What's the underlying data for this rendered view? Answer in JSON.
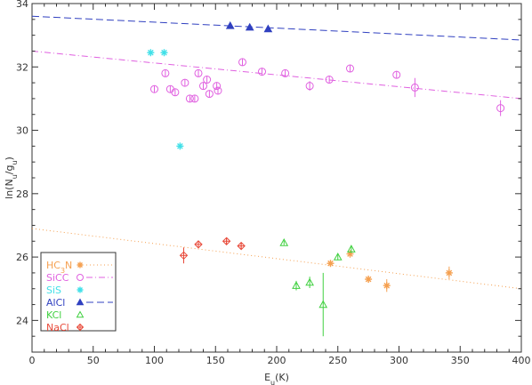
{
  "chart_data": {
    "type": "scatter",
    "xlabel": "E_u(K)",
    "ylabel": "ln(N_u/g_u)",
    "xlim": [
      0,
      400
    ],
    "ylim": [
      23,
      34
    ],
    "xticks": [
      0,
      50,
      100,
      150,
      200,
      250,
      300,
      350,
      400
    ],
    "yticks": [
      24,
      26,
      28,
      30,
      32,
      34
    ],
    "grid": false,
    "legend_position": "bottom-left",
    "series": [
      {
        "name": "HC3N",
        "legend_main": "HC",
        "legend_sub": "3",
        "legend_end": "N",
        "color": "#f5a050",
        "marker": "star",
        "fit_style": "dotted",
        "fit": {
          "x": [
            0,
            400
          ],
          "y": [
            26.9,
            25.0
          ]
        },
        "points": [
          {
            "x": 244,
            "y": 25.8,
            "err": 0.05
          },
          {
            "x": 260,
            "y": 26.1,
            "err": 0.12
          },
          {
            "x": 275,
            "y": 25.3,
            "err": 0.1
          },
          {
            "x": 290,
            "y": 25.1,
            "err": 0.2
          },
          {
            "x": 341,
            "y": 25.5,
            "err": 0.2
          }
        ]
      },
      {
        "name": "SiCC",
        "color": "#e060e0",
        "marker": "circle",
        "fit_style": "dashdot",
        "fit": {
          "x": [
            0,
            400
          ],
          "y": [
            32.5,
            31.0
          ]
        },
        "points": [
          {
            "x": 100,
            "y": 31.3,
            "err": 0.1
          },
          {
            "x": 109,
            "y": 31.8,
            "err": 0.1
          },
          {
            "x": 113,
            "y": 31.3,
            "err": 0.1
          },
          {
            "x": 117,
            "y": 31.2,
            "err": 0.1
          },
          {
            "x": 125,
            "y": 31.5,
            "err": 0.1
          },
          {
            "x": 129,
            "y": 31.0,
            "err": 0.1
          },
          {
            "x": 133,
            "y": 31.0,
            "err": 0.1
          },
          {
            "x": 136,
            "y": 31.8,
            "err": 0.1
          },
          {
            "x": 140,
            "y": 31.4,
            "err": 0.1
          },
          {
            "x": 143,
            "y": 31.6,
            "err": 0.1
          },
          {
            "x": 145,
            "y": 31.15,
            "err": 0.1
          },
          {
            "x": 151,
            "y": 31.4,
            "err": 0.1
          },
          {
            "x": 152,
            "y": 31.25,
            "err": 0.1
          },
          {
            "x": 172,
            "y": 32.15,
            "err": 0.1
          },
          {
            "x": 188,
            "y": 31.85,
            "err": 0.12
          },
          {
            "x": 207,
            "y": 31.8,
            "err": 0.12
          },
          {
            "x": 227,
            "y": 31.4,
            "err": 0.15
          },
          {
            "x": 243,
            "y": 31.6,
            "err": 0.12
          },
          {
            "x": 260,
            "y": 31.95,
            "err": 0.1
          },
          {
            "x": 298,
            "y": 31.75,
            "err": 0.12
          },
          {
            "x": 313,
            "y": 31.35,
            "err": 0.3
          },
          {
            "x": 383,
            "y": 30.7,
            "err": 0.25
          }
        ]
      },
      {
        "name": "SiS",
        "color": "#40e0e8",
        "marker": "star",
        "fit_style": "none",
        "points": [
          {
            "x": 97,
            "y": 32.45
          },
          {
            "x": 108,
            "y": 32.45
          },
          {
            "x": 121,
            "y": 29.5
          }
        ]
      },
      {
        "name": "AlCl",
        "color": "#3040c0",
        "marker": "triangle-filled",
        "fit_style": "dashed",
        "fit": {
          "x": [
            0,
            400
          ],
          "y": [
            33.6,
            32.85
          ]
        },
        "points": [
          {
            "x": 162,
            "y": 33.3,
            "err": 0.07
          },
          {
            "x": 178,
            "y": 33.25,
            "err": 0.07
          },
          {
            "x": 193,
            "y": 33.2,
            "err": 0.07
          }
        ]
      },
      {
        "name": "KCl",
        "color": "#40d040",
        "marker": "triangle-open",
        "fit_style": "none",
        "points": [
          {
            "x": 206,
            "y": 26.45,
            "err": 0.07
          },
          {
            "x": 216,
            "y": 25.1,
            "err": 0.15
          },
          {
            "x": 227,
            "y": 25.2,
            "err": 0.18
          },
          {
            "x": 238,
            "y": 24.5,
            "err": 1.0
          },
          {
            "x": 250,
            "y": 26.0,
            "err": 0.1
          },
          {
            "x": 261,
            "y": 26.25,
            "err": 0.12
          }
        ]
      },
      {
        "name": "NaCl",
        "color": "#e84a3a",
        "marker": "diamond-cross",
        "fit_style": "none",
        "points": [
          {
            "x": 124,
            "y": 26.05,
            "err": 0.25
          },
          {
            "x": 136,
            "y": 26.4,
            "err": 0.12
          },
          {
            "x": 159,
            "y": 26.5,
            "err": 0.08
          },
          {
            "x": 171,
            "y": 26.35,
            "err": 0.1
          }
        ]
      }
    ]
  }
}
